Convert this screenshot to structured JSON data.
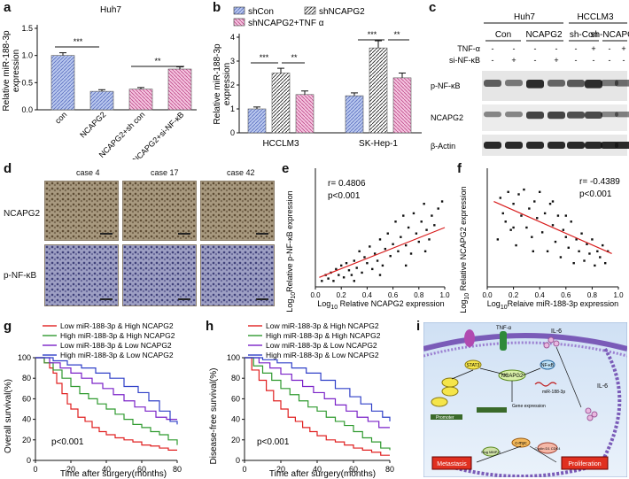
{
  "panels": {
    "a": {
      "letter": "a",
      "title": "Huh7",
      "ylabel_1": "Relative miR-188-3p",
      "ylabel_2": "expression",
      "ticks": [
        "0.0",
        "0.5",
        "1.0",
        "1.5"
      ],
      "sig": [
        "***",
        "**"
      ]
    },
    "b": {
      "letter": "b",
      "ylabel_1": "Relative miR-188-3p",
      "ylabel_2": "expression",
      "ticks": [
        "0",
        "1",
        "2",
        "3",
        "4"
      ],
      "legend": [
        "shCon",
        "shNCAPG2",
        "shNCAPG2+TNF α"
      ],
      "sig": [
        "***",
        "**",
        "***",
        "**"
      ]
    },
    "c": {
      "letter": "c",
      "cell1": "Huh7",
      "cell2": "HCCLM3",
      "groups": [
        "Con",
        "NCAPG2",
        "sh-Con",
        "sh-NCAPG2"
      ],
      "row_labels": [
        "TNF-α",
        "si-NF-κB"
      ],
      "tnf": [
        "-",
        "-",
        "-",
        "-",
        "-",
        "+",
        "-",
        "+"
      ],
      "sinf": [
        "-",
        "+",
        "-",
        "+",
        "-",
        "-",
        "-",
        "-"
      ],
      "bands": [
        "p-NF-κB",
        "NCAPG2",
        "β-Actin"
      ]
    },
    "d": {
      "letter": "d",
      "cases": [
        "case 4",
        "case 17",
        "case 42"
      ],
      "rows": [
        "NCAPG2",
        "p-NF-κB"
      ]
    },
    "e": {
      "letter": "e",
      "ylabel_1": "Log",
      "ylabel_sub": "10",
      "ylabel_2": "Relative p-NF-κB expression",
      "xlabel_1": "Log",
      "xlabel_sub": "10",
      "xlabel_2": " Relative NCAPG2 expression",
      "r": "r= 0.4806",
      "p": "p<0.001",
      "xticks": [
        "0.0",
        "0.2",
        "0.4",
        "0.6",
        "0.8",
        "1.0"
      ]
    },
    "f": {
      "letter": "f",
      "ylabel_1": "Log",
      "ylabel_sub": "10",
      "ylabel_2": " Relative NCAPG2 expression",
      "xlabel_1": "Log",
      "xlabel_sub": "10",
      "xlabel_2": "Relaive miR-188-3p expression",
      "r": "r= -0.4389",
      "p": "p<0.001",
      "xticks": [
        "0.0",
        "0.2",
        "0.4",
        "0.6",
        "0.8",
        "1.0"
      ]
    },
    "g": {
      "letter": "g",
      "ylabel": "Overall survival(%)",
      "xlabel": "Time after surgery(months)",
      "p": "p<0.001",
      "yticks": [
        "0",
        "20",
        "40",
        "60",
        "80",
        "100"
      ],
      "xticks": [
        "0",
        "20",
        "40",
        "60",
        "80"
      ]
    },
    "h": {
      "letter": "h",
      "ylabel": "Disease-free survival(%)",
      "xlabel": "Time after surgery(months)",
      "p": "p<0.001",
      "yticks": [
        "0",
        "20",
        "40",
        "60",
        "80",
        "100"
      ],
      "xticks": [
        "0",
        "20",
        "40",
        "60",
        "80"
      ]
    },
    "i": {
      "letter": "i",
      "labels": {
        "tnf": "TNF-α",
        "il6a": "IL-6",
        "il6b": "IL-6",
        "stat3": "STAT3",
        "ncapg2": "NCAPG2",
        "nfkb": "NF-κB",
        "mir": "miR-188-3p",
        "promoter": "Promoter",
        "gene": "Gene expression",
        "cmyc": "c-myc",
        "metastasis": "Metastasis",
        "proliferation": "Proliferation",
        "mmp": "Slug MMP-9",
        "cyclin": "Cyclin D1 CDK4"
      }
    }
  },
  "legend_km": [
    "Low miR-188-3p & High NCAPG2",
    "High miR-188-3p & High NCAPG2",
    "Low miR-188-3p & Low NCAPG2",
    "High miR-188-3p & Low NCAPG2"
  ],
  "colors": {
    "blueBar": "#8ea6d8",
    "pinkBar": "#e89cc6",
    "red": "#e02020",
    "green": "#2f9a2f",
    "purple": "#7a22c8",
    "blue": "#3040c8"
  },
  "chart_data": [
    {
      "id": "a",
      "type": "bar",
      "categories": [
        "con",
        "NCAPG2",
        "NCAPG2+sh con",
        "NCAPG2+si-NF-κB"
      ],
      "values": [
        1.0,
        0.34,
        0.38,
        0.75
      ],
      "errors": [
        0.05,
        0.03,
        0.03,
        0.04
      ],
      "ylim": [
        0,
        1.5
      ],
      "colors": [
        "#8ea6d8",
        "#8ea6d8",
        "#e89cc6",
        "#e89cc6"
      ]
    },
    {
      "id": "b",
      "type": "bar",
      "categories": [
        "HCCLM3",
        "SK-Hep-1"
      ],
      "series": [
        {
          "name": "shCon",
          "values": [
            1.0,
            1.55
          ],
          "errors": [
            0.08,
            0.12
          ]
        },
        {
          "name": "shNCAPG2",
          "values": [
            2.5,
            3.55
          ],
          "errors": [
            0.2,
            0.3
          ]
        },
        {
          "name": "shNCAPG2+TNF α",
          "values": [
            1.6,
            2.3
          ],
          "errors": [
            0.15,
            0.2
          ]
        }
      ],
      "ylim": [
        0,
        4
      ]
    },
    {
      "id": "e",
      "type": "scatter",
      "xlim": [
        0,
        1
      ],
      "ylim": [
        0,
        1
      ],
      "fit": [
        [
          0.03,
          0.08
        ],
        [
          1.0,
          0.5
        ]
      ],
      "points": [
        [
          0.05,
          0.05
        ],
        [
          0.08,
          0.1
        ],
        [
          0.1,
          0.07
        ],
        [
          0.12,
          0.12
        ],
        [
          0.14,
          0.05
        ],
        [
          0.16,
          0.15
        ],
        [
          0.18,
          0.1
        ],
        [
          0.2,
          0.18
        ],
        [
          0.22,
          0.08
        ],
        [
          0.24,
          0.2
        ],
        [
          0.26,
          0.14
        ],
        [
          0.28,
          0.1
        ],
        [
          0.3,
          0.22
        ],
        [
          0.32,
          0.16
        ],
        [
          0.34,
          0.3
        ],
        [
          0.36,
          0.12
        ],
        [
          0.38,
          0.25
        ],
        [
          0.4,
          0.2
        ],
        [
          0.42,
          0.34
        ],
        [
          0.44,
          0.15
        ],
        [
          0.46,
          0.28
        ],
        [
          0.48,
          0.22
        ],
        [
          0.5,
          0.4
        ],
        [
          0.52,
          0.18
        ],
        [
          0.54,
          0.32
        ],
        [
          0.56,
          0.45
        ],
        [
          0.58,
          0.26
        ],
        [
          0.6,
          0.36
        ],
        [
          0.62,
          0.55
        ],
        [
          0.64,
          0.3
        ],
        [
          0.66,
          0.42
        ],
        [
          0.68,
          0.6
        ],
        [
          0.7,
          0.35
        ],
        [
          0.72,
          0.5
        ],
        [
          0.74,
          0.28
        ],
        [
          0.76,
          0.62
        ],
        [
          0.78,
          0.45
        ],
        [
          0.8,
          0.38
        ],
        [
          0.82,
          0.55
        ],
        [
          0.84,
          0.7
        ],
        [
          0.86,
          0.48
        ],
        [
          0.88,
          0.4
        ],
        [
          0.9,
          0.6
        ],
        [
          0.92,
          0.52
        ],
        [
          0.95,
          0.66
        ],
        [
          0.98,
          0.72
        ],
        [
          0.3,
          0.05
        ],
        [
          0.5,
          0.1
        ],
        [
          0.7,
          0.18
        ],
        [
          0.85,
          0.3
        ]
      ]
    },
    {
      "id": "f",
      "type": "scatter",
      "xlim": [
        0,
        1
      ],
      "ylim": [
        0,
        1
      ],
      "fit": [
        [
          0.05,
          0.72
        ],
        [
          0.95,
          0.28
        ]
      ],
      "points": [
        [
          0.08,
          0.4
        ],
        [
          0.1,
          0.75
        ],
        [
          0.12,
          0.62
        ],
        [
          0.14,
          0.55
        ],
        [
          0.16,
          0.8
        ],
        [
          0.18,
          0.48
        ],
        [
          0.2,
          0.7
        ],
        [
          0.22,
          0.35
        ],
        [
          0.24,
          0.78
        ],
        [
          0.26,
          0.6
        ],
        [
          0.28,
          0.82
        ],
        [
          0.3,
          0.5
        ],
        [
          0.32,
          0.66
        ],
        [
          0.34,
          0.42
        ],
        [
          0.36,
          0.72
        ],
        [
          0.38,
          0.58
        ],
        [
          0.4,
          0.8
        ],
        [
          0.42,
          0.46
        ],
        [
          0.44,
          0.62
        ],
        [
          0.46,
          0.3
        ],
        [
          0.48,
          0.7
        ],
        [
          0.5,
          0.52
        ],
        [
          0.52,
          0.38
        ],
        [
          0.54,
          0.6
        ],
        [
          0.56,
          0.25
        ],
        [
          0.58,
          0.48
        ],
        [
          0.6,
          0.42
        ],
        [
          0.62,
          0.33
        ],
        [
          0.64,
          0.55
        ],
        [
          0.66,
          0.2
        ],
        [
          0.68,
          0.4
        ],
        [
          0.7,
          0.3
        ],
        [
          0.72,
          0.45
        ],
        [
          0.74,
          0.22
        ],
        [
          0.76,
          0.36
        ],
        [
          0.78,
          0.28
        ],
        [
          0.8,
          0.4
        ],
        [
          0.82,
          0.18
        ],
        [
          0.84,
          0.3
        ],
        [
          0.86,
          0.25
        ],
        [
          0.88,
          0.35
        ],
        [
          0.9,
          0.2
        ],
        [
          0.92,
          0.3
        ],
        [
          0.2,
          0.5
        ],
        [
          0.35,
          0.3
        ],
        [
          0.5,
          0.72
        ],
        [
          0.6,
          0.6
        ]
      ]
    },
    {
      "id": "g",
      "type": "line",
      "step": true,
      "xlim": [
        0,
        80
      ],
      "ylim": [
        0,
        100
      ],
      "series": [
        {
          "name": "Low miR-188-3p & High NCAPG2",
          "x": [
            0,
            5,
            8,
            10,
            12,
            15,
            18,
            20,
            24,
            28,
            32,
            36,
            40,
            45,
            50,
            55,
            60,
            65,
            70,
            75,
            80
          ],
          "y": [
            100,
            95,
            90,
            85,
            75,
            65,
            55,
            50,
            42,
            38,
            32,
            28,
            25,
            22,
            20,
            18,
            15,
            14,
            12,
            10,
            10
          ]
        },
        {
          "name": "High miR-188-3p & High NCAPG2",
          "x": [
            0,
            5,
            10,
            15,
            20,
            25,
            30,
            35,
            40,
            45,
            50,
            55,
            60,
            65,
            70,
            75,
            80
          ],
          "y": [
            100,
            95,
            88,
            80,
            72,
            65,
            60,
            55,
            50,
            45,
            40,
            35,
            32,
            28,
            25,
            20,
            15
          ]
        },
        {
          "name": "Low miR-188-3p & Low NCAPG2",
          "x": [
            0,
            8,
            14,
            20,
            26,
            32,
            38,
            44,
            50,
            56,
            62,
            68,
            74,
            80
          ],
          "y": [
            100,
            95,
            90,
            85,
            80,
            75,
            70,
            64,
            58,
            52,
            48,
            42,
            40,
            40
          ]
        },
        {
          "name": "High miR-188-3p & Low NCAPG2",
          "x": [
            0,
            10,
            18,
            26,
            34,
            42,
            50,
            58,
            64,
            70,
            76,
            80
          ],
          "y": [
            100,
            97,
            93,
            90,
            85,
            80,
            72,
            66,
            58,
            48,
            38,
            35
          ]
        }
      ]
    },
    {
      "id": "h",
      "type": "line",
      "step": true,
      "xlim": [
        0,
        80
      ],
      "ylim": [
        0,
        100
      ],
      "series": [
        {
          "name": "Low miR-188-3p & High NCAPG2",
          "x": [
            0,
            4,
            8,
            12,
            16,
            20,
            24,
            28,
            32,
            36,
            40,
            45,
            50,
            55,
            60,
            65,
            70,
            75,
            80
          ],
          "y": [
            100,
            88,
            78,
            68,
            58,
            50,
            42,
            38,
            32,
            28,
            24,
            20,
            18,
            15,
            12,
            10,
            8,
            5,
            5
          ]
        },
        {
          "name": "High miR-188-3p & High NCAPG2",
          "x": [
            0,
            5,
            10,
            15,
            20,
            25,
            30,
            35,
            40,
            45,
            50,
            55,
            60,
            65,
            70,
            75,
            80
          ],
          "y": [
            100,
            92,
            85,
            78,
            70,
            64,
            58,
            52,
            48,
            42,
            38,
            34,
            28,
            22,
            18,
            12,
            10
          ]
        },
        {
          "name": "Low miR-188-3p & Low NCAPG2",
          "x": [
            0,
            8,
            14,
            20,
            26,
            32,
            38,
            44,
            50,
            56,
            62,
            68,
            74,
            80
          ],
          "y": [
            100,
            95,
            90,
            84,
            78,
            72,
            66,
            60,
            54,
            48,
            42,
            38,
            32,
            32
          ]
        },
        {
          "name": "High miR-188-3p & Low NCAPG2",
          "x": [
            0,
            10,
            18,
            26,
            34,
            42,
            50,
            58,
            64,
            70,
            76,
            80
          ],
          "y": [
            100,
            98,
            95,
            90,
            85,
            78,
            70,
            62,
            55,
            48,
            42,
            38
          ]
        }
      ]
    }
  ]
}
